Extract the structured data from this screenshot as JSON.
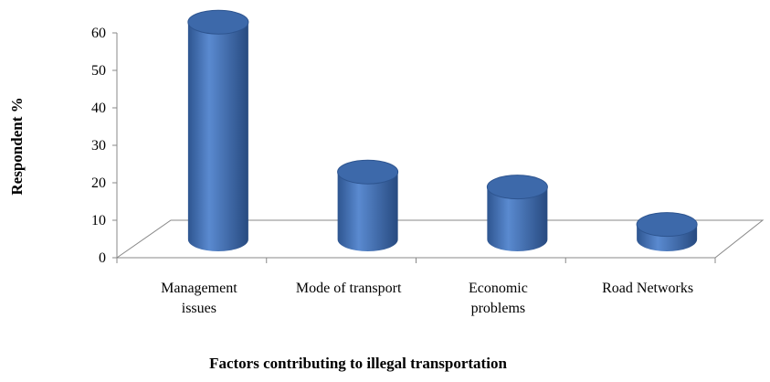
{
  "chart_data": {
    "type": "bar3d",
    "categories": [
      "Management issues",
      "Mode of transport",
      "Economic problems",
      "Road Networks"
    ],
    "values": [
      58,
      18,
      14,
      4
    ],
    "color": "#4f81bd",
    "ylim": [
      0,
      60
    ],
    "yticks": [
      0,
      10,
      20,
      30,
      40,
      50,
      60
    ],
    "ylabel": "Respondent %",
    "xlabel": "Factors contributing to illegal transportation"
  }
}
